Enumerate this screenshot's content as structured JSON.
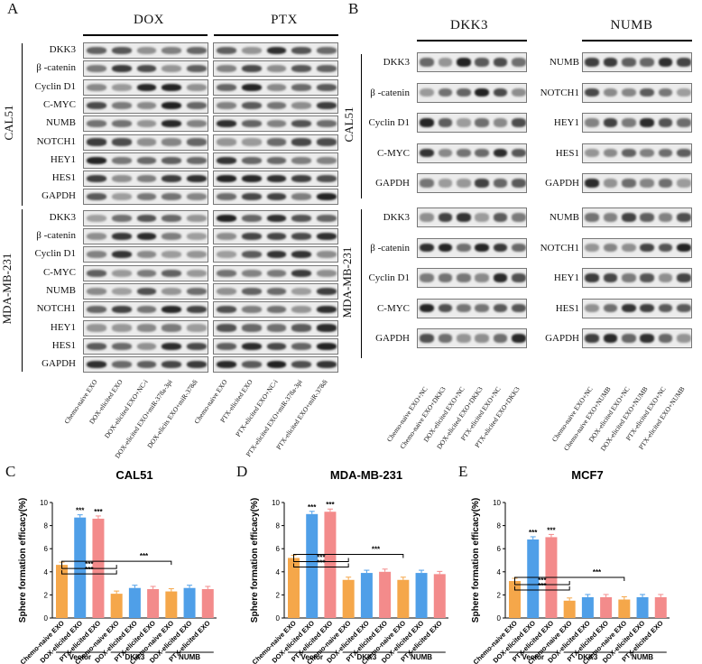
{
  "panels": {
    "A": "A",
    "B": "B",
    "C": "C",
    "D": "D",
    "E": "E"
  },
  "panel_a": {
    "groups": [
      "DOX",
      "PTX"
    ],
    "cell_lines": [
      "CAL51",
      "MDA-MB-231"
    ],
    "rows_cal51": [
      "DKK3",
      "β -catenin",
      "Cyclin D1",
      "C-MYC",
      "NUMB",
      "NOTCH1",
      "HEY1",
      "HES1",
      "GAPDH"
    ],
    "rows_mda": [
      "DKK3",
      "β -catenin",
      "Cyclin D1",
      "C-MYC",
      "NUMB",
      "NOTCH1",
      "HEY1",
      "HES1",
      "GAPDH"
    ],
    "lanes_dox": [
      "Chemo-naive EXO",
      "DOX-elicited EXO",
      "DOX-elicited EXO+NC-i",
      "DOX-elicited EXO+miR-378a-3pi",
      "DOX-elicits EXO+miR-378di"
    ],
    "lanes_ptx": [
      "Chemo-naive EXO",
      "PTX-elicited EXO",
      "PTX-elicited EXO+NC-i",
      "PTX-elicited EXO+miR-378a-3pi",
      "PTX-elicited EXO+miR-378di"
    ]
  },
  "panel_b": {
    "groups": [
      "DKK3",
      "NUMB"
    ],
    "cell_lines": [
      "CAL51",
      "MDA-MB-231"
    ],
    "rows_dkk3": [
      "DKK3",
      "β -catenin",
      "Cyclin D1",
      "C-MYC",
      "GAPDH"
    ],
    "rows_numb": [
      "NUMB",
      "NOTCH1",
      "HEY1",
      "HES1",
      "GAPDH"
    ],
    "lanes_dkk3": [
      "Chemo-naive EXO+NC",
      "Chemo-naive EXO+DKK3",
      "DOX-elicited EXO+NC",
      "DOX-elicited EXO+DKK3",
      "PTX-elicited EXO+NC",
      "PTX-elicited EXO+DKK3"
    ],
    "lanes_numb": [
      "Chemo-naive EXO+NC",
      "Chemo-naive EXO+NUMB",
      "DOX-elicited EXO+NC",
      "DOX-elicited EXO+NUMB",
      "PTX-elicited EXO+NC",
      "PTX-elicited EXO+NUMB"
    ]
  },
  "colors": {
    "orange": "#f5a74a",
    "blue": "#4f9fe8",
    "pink": "#f38b8b"
  },
  "chart_data": [
    {
      "type": "bar",
      "title": "CAL51",
      "ylabel": "Sphere formation efficacy(%)",
      "ylim": [
        0,
        10
      ],
      "yticks": [
        "0",
        "2",
        "4",
        "6",
        "8",
        "10"
      ],
      "categories": [
        "Chemo-naive EXO",
        "DOX-elicited EXO",
        "PTX-elicited EXO",
        "Chemo-naive EXO",
        "DOX-elicited EXO",
        "PTX-elicited EXO",
        "Chemo-naive EXO",
        "DOX-elicited EXO",
        "PTX-elicited EXO"
      ],
      "values": [
        4.6,
        8.7,
        8.6,
        2.1,
        2.6,
        2.5,
        2.3,
        2.6,
        2.5
      ],
      "groups": [
        "Vector",
        "DKK3",
        "NUMB"
      ],
      "significance": [
        "***",
        "***",
        "***",
        "***",
        "***"
      ]
    },
    {
      "type": "bar",
      "title": "MDA-MB-231",
      "ylabel": "Sphere formation efficacy(%)",
      "ylim": [
        0,
        10
      ],
      "yticks": [
        "0",
        "2",
        "4",
        "6",
        "8",
        "10"
      ],
      "categories": [
        "Chemo-naive EXO",
        "DOX-elicited EXO",
        "PTX-elicited EXO",
        "Chemo-naive EXO",
        "DOX-elicited EXO",
        "PTX-elicited EXO",
        "Chemo-naive EXO",
        "DOX-elicited EXO",
        "PTX-elicited EXO"
      ],
      "values": [
        5.2,
        9.0,
        9.2,
        3.3,
        3.9,
        4.0,
        3.3,
        3.9,
        3.8
      ],
      "groups": [
        "Vector",
        "DKK3",
        "NUMB"
      ],
      "significance": [
        "***",
        "***",
        "***",
        "***",
        "***"
      ]
    },
    {
      "type": "bar",
      "title": "MCF7",
      "ylabel": "Sphere formation efficacy(%)",
      "ylim": [
        0,
        10
      ],
      "yticks": [
        "0",
        "2",
        "4",
        "6",
        "8",
        "10"
      ],
      "categories": [
        "Chemo-naive EXO",
        "DOX-elicited EXO",
        "PTX-elicited EXO",
        "Chemo-naive EXO",
        "DOX-elicited EXO",
        "PTX-elicited EXO",
        "Chemo-naive EXO",
        "DOX-elicited EXO",
        "PTX-elicited EXO"
      ],
      "values": [
        3.2,
        6.8,
        7.0,
        1.5,
        1.8,
        1.8,
        1.6,
        1.8,
        1.8
      ],
      "groups": [
        "Vector",
        "DKK3",
        "NUMB"
      ],
      "significance": [
        "***",
        "***",
        "***",
        "***",
        "***"
      ]
    }
  ]
}
